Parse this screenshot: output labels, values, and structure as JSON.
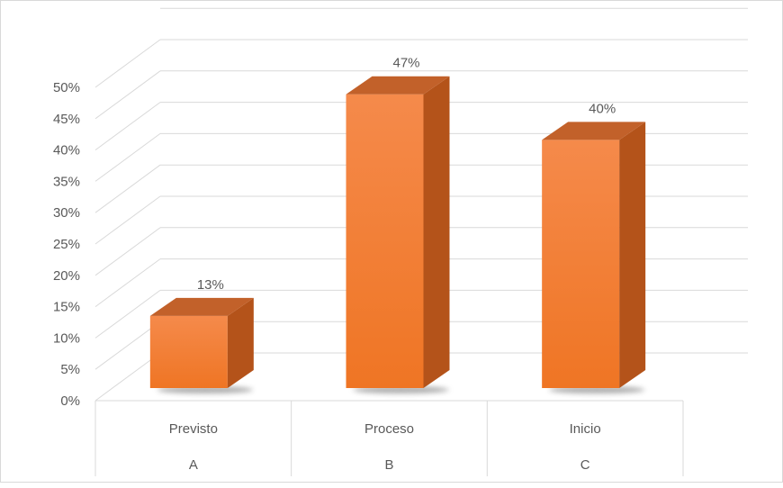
{
  "chart_data": {
    "type": "bar",
    "style": "3d-column",
    "categories": [
      {
        "label": "Previsto",
        "code": "A"
      },
      {
        "label": "Proceso",
        "code": "B"
      },
      {
        "label": "Inicio",
        "code": "C"
      }
    ],
    "values": [
      13,
      47,
      40
    ],
    "value_labels": [
      "13%",
      "47%",
      "40%"
    ],
    "y_ticks": [
      "0%",
      "5%",
      "10%",
      "15%",
      "20%",
      "25%",
      "30%",
      "35%",
      "40%",
      "45%",
      "50%"
    ],
    "ylim": [
      0,
      50
    ],
    "grid": true,
    "legend": "none",
    "colors": {
      "bar_front_top": "#f58a4b",
      "bar_front_bottom": "#ef7524",
      "bar_side": "#b4531a",
      "bar_top": "#c2612a",
      "shadow": "#6b6b6b",
      "grid": "#d9d9d9",
      "text": "#595959"
    }
  }
}
